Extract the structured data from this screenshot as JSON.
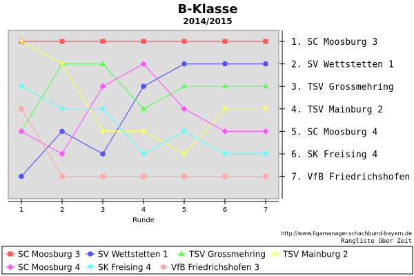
{
  "chart_data": {
    "type": "line",
    "title": "B-Klasse",
    "subtitle": "2014/2015",
    "xlabel": "Runde",
    "ylabel": "",
    "x": [
      1,
      2,
      3,
      4,
      5,
      6,
      7
    ],
    "ylim": [
      1,
      7
    ],
    "y_inverted": true,
    "grid": false,
    "legend_position": "bottom",
    "right_axis_labels": [
      "1. SC Moosburg 3",
      "2. SV Wettstetten 1",
      "3. TSV Grossmehring",
      "4. TSV Mainburg 2",
      "5. SC Moosburg 4",
      "6. SK Freising 4",
      "7. VfB Friedrichshofen 3"
    ],
    "series": [
      {
        "name": "SC Moosburg 3",
        "color": "#ff5555",
        "marker": "square",
        "values": [
          1,
          1,
          1,
          1,
          1,
          1,
          1
        ]
      },
      {
        "name": "SV Wettstetten 1",
        "color": "#5555ff",
        "marker": "circle",
        "values": [
          7,
          5,
          6,
          3,
          2,
          2,
          2
        ]
      },
      {
        "name": "TSV Grossmehring",
        "color": "#55ff55",
        "marker": "triangle-up",
        "values": [
          5,
          2,
          2,
          4,
          3,
          3,
          3
        ]
      },
      {
        "name": "TSV Mainburg 2",
        "color": "#ffff55",
        "marker": "triangle-down",
        "values": [
          1,
          2,
          5,
          5,
          6,
          4,
          4
        ]
      },
      {
        "name": "SC Moosburg 4",
        "color": "#ff55ff",
        "marker": "diamond",
        "values": [
          5,
          6,
          3,
          2,
          4,
          5,
          5
        ]
      },
      {
        "name": "SK Freising 4",
        "color": "#55ffff",
        "marker": "triangle-down",
        "values": [
          3,
          4,
          4,
          6,
          5,
          6,
          6
        ]
      },
      {
        "name": "VfB Friedrichshofen 3",
        "color": "#ffaaaa",
        "marker": "square",
        "values": [
          4,
          7,
          7,
          7,
          7,
          7,
          7
        ]
      }
    ]
  },
  "footer": {
    "url": "http://www.ligamanager.schachbund-bayern.de",
    "note": "Rangliste über Zeit"
  },
  "colors": {
    "plot_background": "#dddddd",
    "plot_border": "#888888"
  }
}
